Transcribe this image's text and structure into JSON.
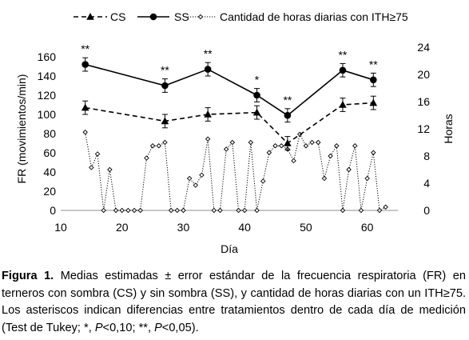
{
  "chart_data": {
    "type": "line",
    "legend": {
      "position": "top",
      "entries": [
        {
          "key": "cs",
          "label": "CS"
        },
        {
          "key": "ss",
          "label": "SS"
        },
        {
          "key": "horas",
          "label": "Cantidad de horas diarias con ITH≥75"
        }
      ]
    },
    "xlabel": "Día",
    "ylabel": "FR (movimientos/min)",
    "y2label": "Horas",
    "xlim": [
      10,
      65
    ],
    "ylim": [
      0,
      170
    ],
    "y2lim": [
      0,
      24
    ],
    "xticks": [
      "10",
      "20",
      "30",
      "40",
      "50",
      "60"
    ],
    "yticks": [
      "0",
      "20",
      "40",
      "60",
      "80",
      "100",
      "120",
      "140",
      "160"
    ],
    "y2ticks": [
      "0",
      "4",
      "8",
      "12",
      "16",
      "20",
      "24"
    ],
    "series": [
      {
        "name": "CS",
        "axis": "left",
        "marker": "triangle",
        "line": "dashed",
        "x": [
          14,
          27,
          34,
          42,
          47,
          56,
          61
        ],
        "y": [
          107,
          93,
          100,
          102,
          70,
          110,
          112
        ],
        "error": [
          7,
          7,
          7,
          7,
          7,
          7,
          7
        ]
      },
      {
        "name": "SS",
        "axis": "right_none",
        "marker": "circle",
        "line": "solid",
        "x": [
          14,
          27,
          34,
          42,
          47,
          56,
          61
        ],
        "y": [
          152,
          130,
          147,
          120,
          99,
          146,
          136
        ],
        "error": [
          7,
          7,
          7,
          7,
          7,
          7,
          7
        ]
      },
      {
        "name": "Cantidad de horas diarias con ITH≥75",
        "axis": "right",
        "marker": "diamond-open",
        "line": "dotted",
        "x": [
          14,
          15,
          16,
          17,
          18,
          19,
          20,
          21,
          22,
          23,
          24,
          25,
          26,
          27,
          28,
          29,
          30,
          31,
          32,
          33,
          34,
          35,
          36,
          37,
          38,
          39,
          40,
          41,
          42,
          43,
          44,
          45,
          46,
          47,
          48,
          49,
          50,
          51,
          52,
          53,
          54,
          55,
          56,
          57,
          58,
          59,
          60,
          61,
          62,
          63
        ],
        "y": [
          11.5,
          6.3,
          8.3,
          0,
          6,
          0,
          0,
          0,
          0,
          0,
          7.7,
          9.5,
          9.5,
          10,
          0,
          0,
          0,
          4.7,
          3.7,
          5.2,
          10.5,
          0,
          0,
          9,
          10,
          0,
          0,
          10,
          0,
          4.3,
          8.5,
          9.5,
          9.5,
          9,
          7.3,
          11.2,
          9.5,
          10,
          10,
          4.7,
          8,
          9.5,
          0,
          6,
          9.5,
          0,
          4.7,
          8.5,
          0,
          0.5
        ]
      }
    ],
    "annotations": [
      {
        "x": 14,
        "text": "**"
      },
      {
        "x": 27,
        "text": "**"
      },
      {
        "x": 34,
        "text": "**"
      },
      {
        "x": 42,
        "text": "*"
      },
      {
        "x": 47,
        "text": "**"
      },
      {
        "x": 56,
        "text": "**"
      },
      {
        "x": 61,
        "text": "**"
      }
    ]
  },
  "caption": {
    "label": "Figura 1.",
    "text_1": " Medias estimadas ± error estándar de la frecuencia respiratoria (FR) en terneros con sombra (CS) y sin sombra (SS), y cantidad de horas diarias con un ITH≥75. Los asteriscos indican diferencias entre tratamientos dentro de cada día de medición (Test de Tukey; *, ",
    "p1": "P",
    "text_2": "<0,10; **, ",
    "p2": "P",
    "text_3": "<0,05)."
  }
}
